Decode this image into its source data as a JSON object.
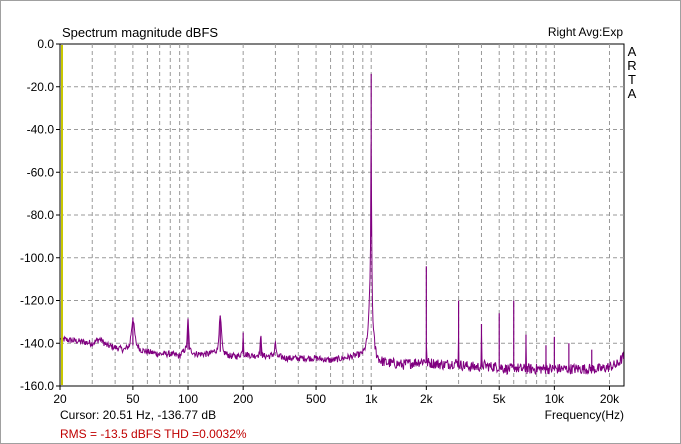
{
  "chart_data": {
    "type": "line",
    "title": "Spectrum magnitude dBFS",
    "channel_info": "Right Avg:Exp",
    "brand_letters": [
      "A",
      "R",
      "T",
      "A"
    ],
    "xlabel": "Frequency(Hz)",
    "ylabel": "",
    "xscale": "log",
    "xlim": [
      20,
      24000
    ],
    "ylim": [
      -160,
      0
    ],
    "x_ticks": [
      {
        "value": 20,
        "label": "20"
      },
      {
        "value": 50,
        "label": "50"
      },
      {
        "value": 100,
        "label": "100"
      },
      {
        "value": 200,
        "label": "200"
      },
      {
        "value": 500,
        "label": "500"
      },
      {
        "value": 1000,
        "label": "1k"
      },
      {
        "value": 2000,
        "label": "2k"
      },
      {
        "value": 5000,
        "label": "5k"
      },
      {
        "value": 10000,
        "label": "10k"
      },
      {
        "value": 20000,
        "label": "20k"
      }
    ],
    "y_ticks": [
      {
        "value": 0,
        "label": "0.0"
      },
      {
        "value": -20,
        "label": "-20.0"
      },
      {
        "value": -40,
        "label": "-40.0"
      },
      {
        "value": -60,
        "label": "-60.0"
      },
      {
        "value": -80,
        "label": "-80.0"
      },
      {
        "value": -100,
        "label": "-100.0"
      },
      {
        "value": -120,
        "label": "-120.0"
      },
      {
        "value": -140,
        "label": "-140.0"
      },
      {
        "value": -160,
        "label": "-160.0"
      }
    ],
    "grid": true,
    "cursor_x": 20.51,
    "series": [
      {
        "color": "#800080",
        "x": [
          20,
          25,
          30,
          33,
          36,
          40,
          45,
          48,
          50,
          52,
          55,
          60,
          70,
          80,
          90,
          98,
          100,
          102,
          110,
          130,
          145,
          150,
          155,
          170,
          190,
          198,
          200,
          202,
          230,
          245,
          250,
          255,
          280,
          295,
          300,
          305,
          350,
          400,
          500,
          600,
          700,
          800,
          880,
          920,
          950,
          970,
          985,
          995,
          1000,
          1005,
          1015,
          1030,
          1050,
          1080,
          1120,
          1200,
          1500,
          1995,
          2000,
          2005,
          2500,
          2995,
          3000,
          3005,
          3500,
          3995,
          4000,
          4005,
          4500,
          4995,
          5000,
          5005,
          5500,
          5995,
          6000,
          6005,
          6500,
          6995,
          7000,
          7005,
          7500,
          8500,
          8995,
          9000,
          9005,
          9500,
          9995,
          10000,
          10005,
          11000,
          11995,
          12000,
          12005,
          13000,
          15000,
          15995,
          16000,
          16005,
          17000,
          18000,
          20000,
          22000,
          23000,
          24000
        ],
        "y": [
          -138,
          -139,
          -140,
          -138,
          -141,
          -142,
          -143,
          -141,
          -128,
          -140,
          -143,
          -144,
          -145,
          -145,
          -146,
          -142,
          -129,
          -143,
          -145,
          -145,
          -143,
          -127,
          -144,
          -146,
          -146,
          -144,
          -135,
          -145,
          -146,
          -145,
          -137,
          -146,
          -146,
          -145,
          -139,
          -146,
          -147,
          -147,
          -147,
          -148,
          -147,
          -146,
          -145,
          -143,
          -138,
          -128,
          -110,
          -85,
          -14,
          -90,
          -120,
          -135,
          -142,
          -146,
          -148,
          -149,
          -150,
          -148,
          -104,
          -149,
          -150,
          -149,
          -120,
          -150,
          -151,
          -151,
          -131,
          -150,
          -151,
          -151,
          -126,
          -151,
          -152,
          -152,
          -120,
          -151,
          -152,
          -152,
          -136,
          -152,
          -152,
          -152,
          -152,
          -141,
          -152,
          -152,
          -152,
          -137,
          -152,
          -152,
          -152,
          -140,
          -152,
          -152,
          -152,
          -152,
          -143,
          -152,
          -152,
          -152,
          -151,
          -150,
          -148,
          -146
        ]
      }
    ]
  },
  "status": {
    "cursor": "Cursor: 20.51 Hz, -136.77 dB",
    "rms": "RMS =  -13.5 dBFS    THD =0.0032%"
  }
}
